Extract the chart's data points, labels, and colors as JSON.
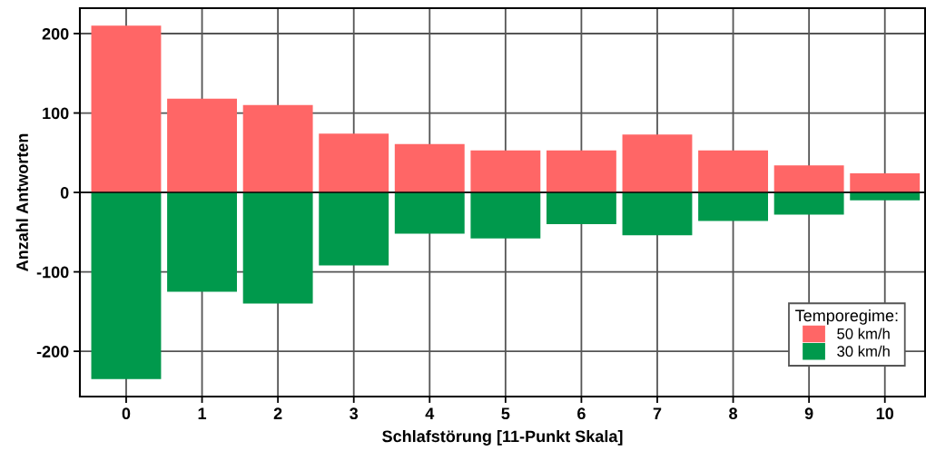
{
  "chart_data": {
    "type": "bar",
    "xlabel": "Schlafstörung [11-Punkt Skala]",
    "ylabel": "Anzahl Antworten",
    "categories": [
      "0",
      "1",
      "2",
      "3",
      "4",
      "5",
      "6",
      "7",
      "8",
      "9",
      "10"
    ],
    "series": [
      {
        "name": "50 km/h",
        "color": "#ff6666",
        "values": [
          210,
          118,
          110,
          74,
          61,
          53,
          53,
          73,
          53,
          34,
          24
        ]
      },
      {
        "name": "30 km/h",
        "color": "#00994c",
        "values": [
          -235,
          -125,
          -140,
          -92,
          -52,
          -58,
          -40,
          -54,
          -36,
          -28,
          -10
        ]
      }
    ],
    "ylim": [
      -257,
      232
    ],
    "yticks": [
      -200,
      -100,
      0,
      100,
      200
    ],
    "stacked": true,
    "legend": "bottom right",
    "legend_title": "Temporegime:",
    "grid": true
  }
}
